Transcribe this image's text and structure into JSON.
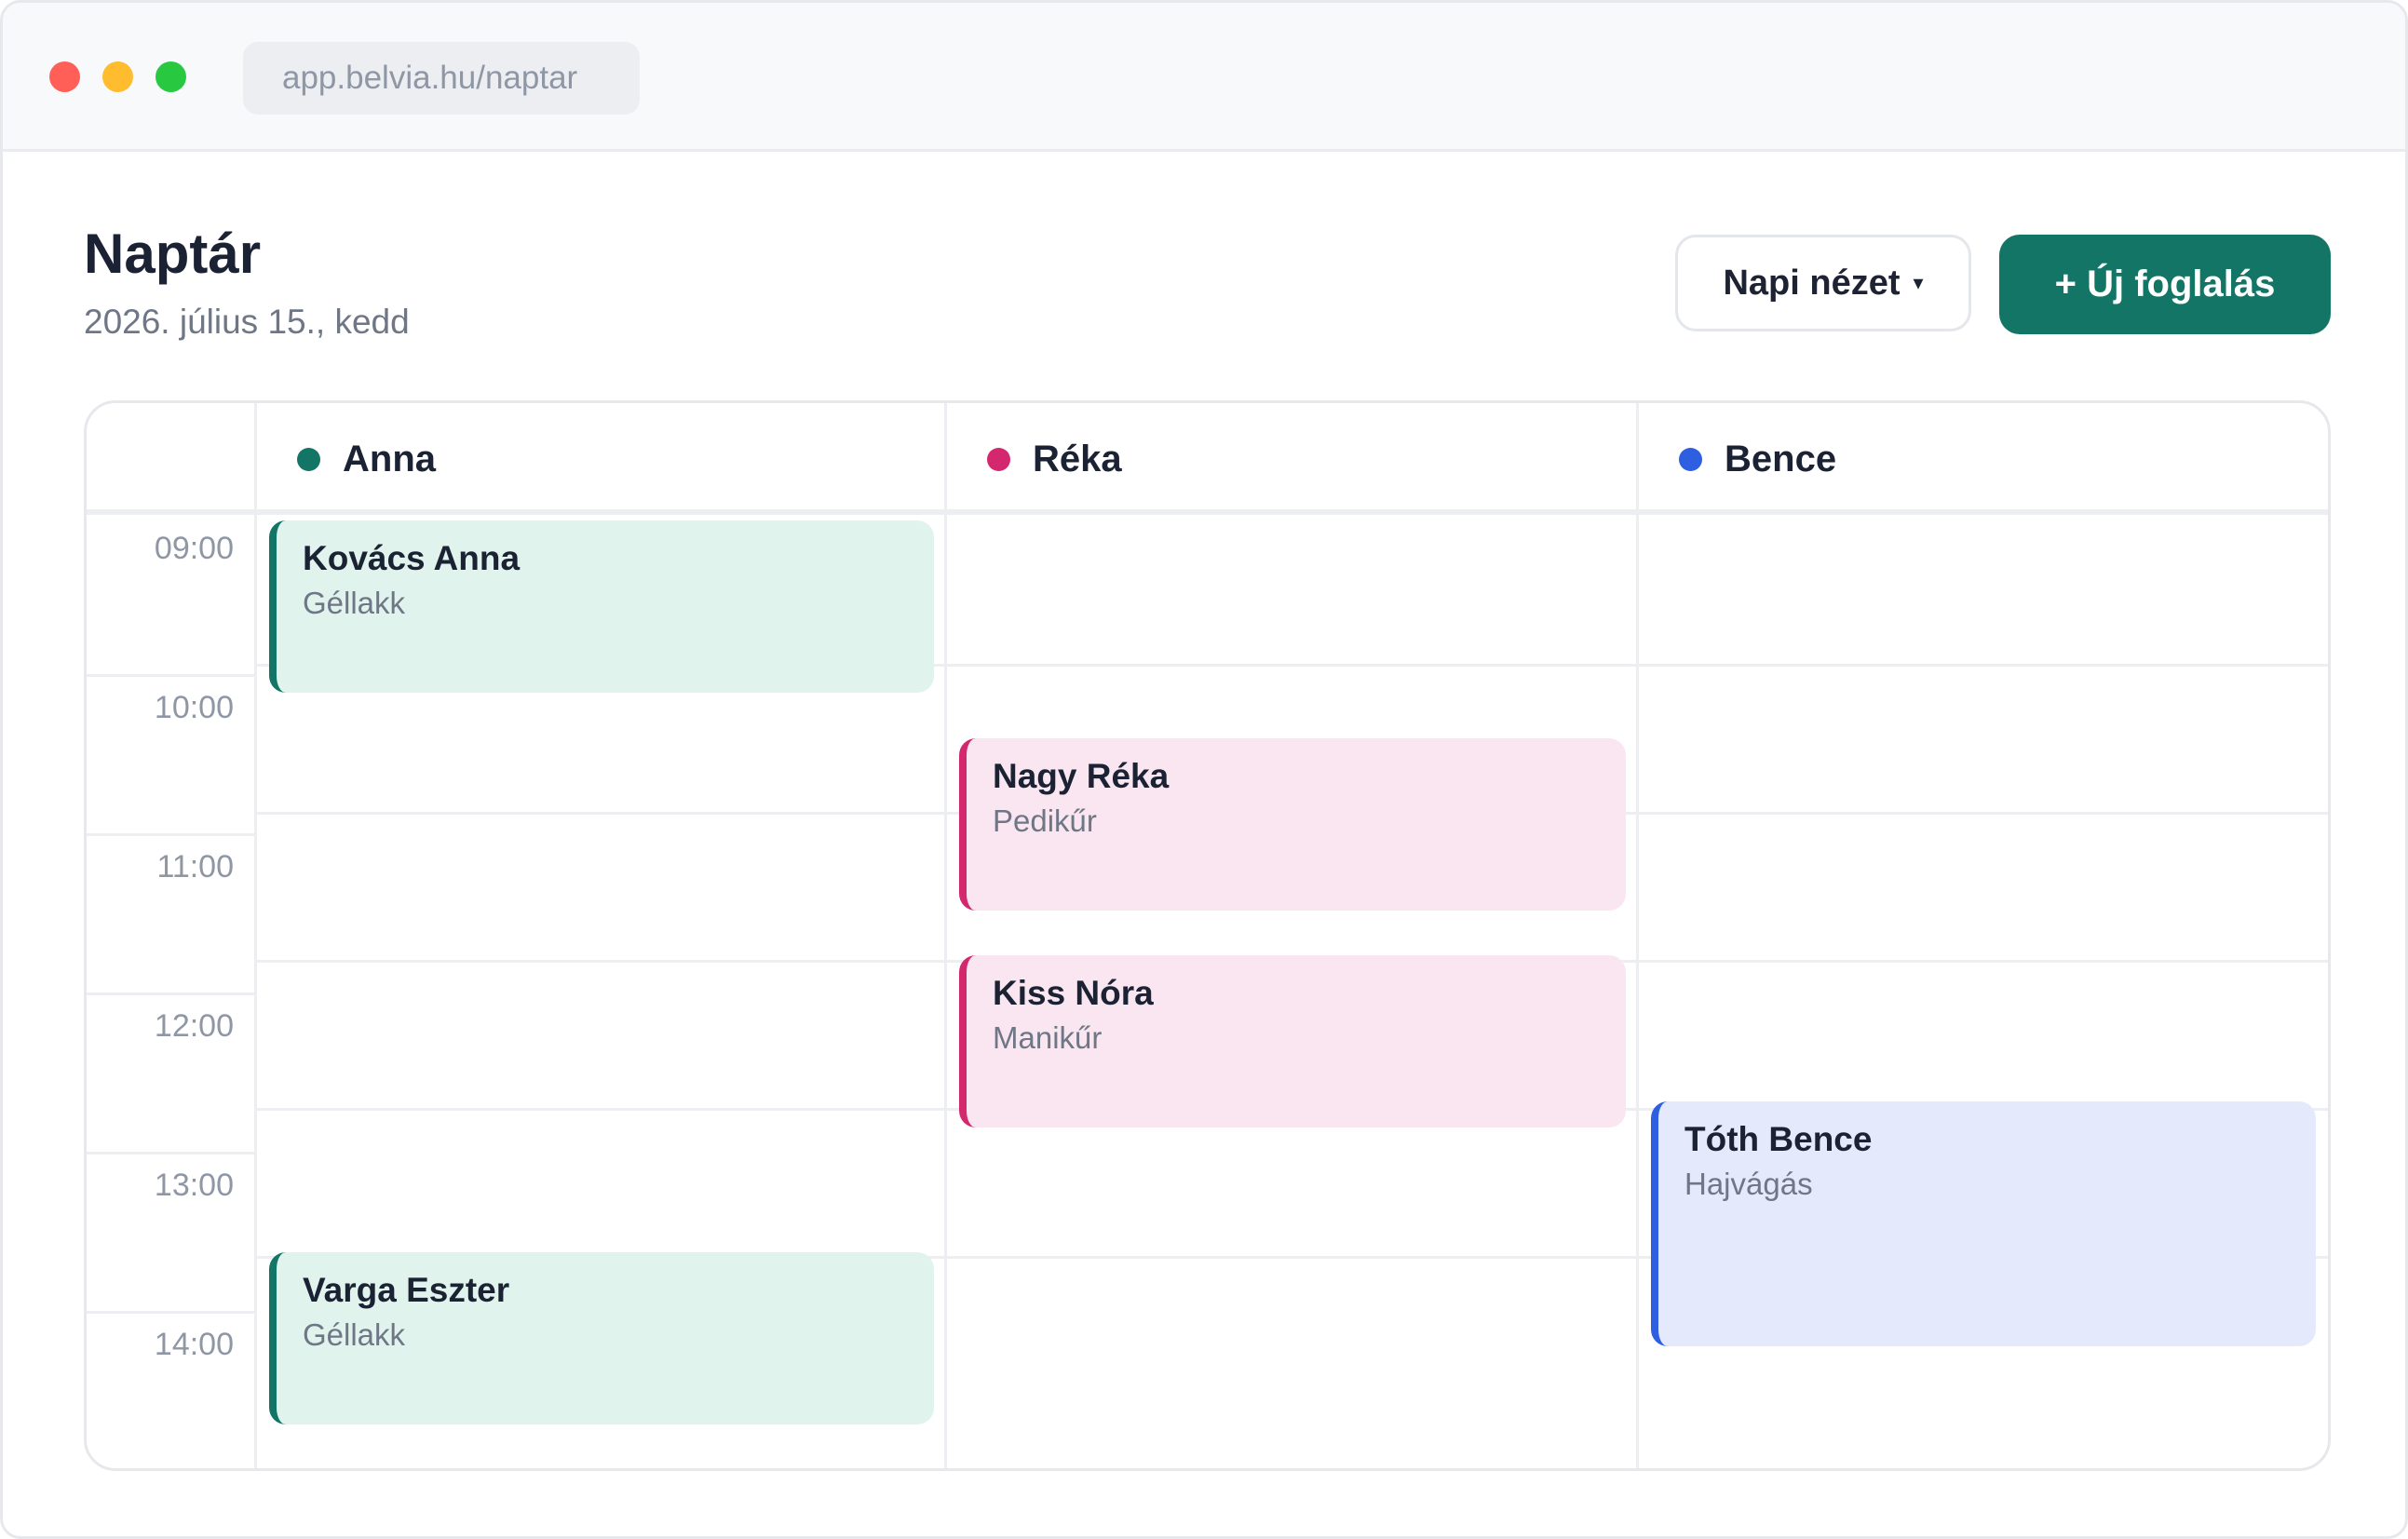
{
  "browser": {
    "url": "app.belvia.hu/naptar"
  },
  "header": {
    "title": "Naptár",
    "date": "2026. július 15., kedd",
    "view_select": {
      "label": "Napi nézet",
      "caret": "▾"
    },
    "new_booking_label": "+ Új foglalás"
  },
  "staff": [
    {
      "name": "Anna",
      "color": "#137565"
    },
    {
      "name": "Réka",
      "color": "#d4286e"
    },
    {
      "name": "Bence",
      "color": "#2e5fe0"
    }
  ],
  "times": [
    "09:00",
    "10:00",
    "11:00",
    "12:00",
    "13:00",
    "14:00"
  ],
  "bookings": [
    {
      "client": "Kovács Anna",
      "service": "Géllakk",
      "staff": "Anna"
    },
    {
      "client": "Varga Eszter",
      "service": "Géllakk",
      "staff": "Anna"
    },
    {
      "client": "Nagy Réka",
      "service": "Pedikűr",
      "staff": "Réka"
    },
    {
      "client": "Kiss Nóra",
      "service": "Manikűr",
      "staff": "Réka"
    },
    {
      "client": "Tóth Bence",
      "service": "Hajvágás",
      "staff": "Bence"
    }
  ],
  "colors": {
    "accent": "#137565",
    "anna_bg": "#e1f3ed",
    "reka_bg": "#f9e6f0",
    "bence_bg": "#e4eafb"
  }
}
